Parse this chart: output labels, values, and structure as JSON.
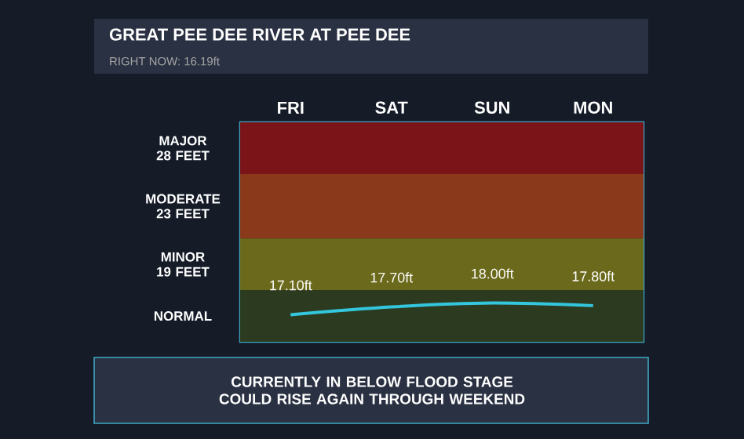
{
  "chart_data": {
    "type": "line",
    "title": "GREAT PEE DEE RIVER AT PEE DEE",
    "subtitle": "RIGHT NOW: 16.19ft",
    "categories": [
      "FRI",
      "SAT",
      "SUN",
      "MON"
    ],
    "values": [
      17.1,
      17.7,
      18.0,
      17.8
    ],
    "value_labels": [
      "17.10ft",
      "17.70ft",
      "18.00ft",
      "17.80ft"
    ],
    "color": "#33c6dc",
    "marker": "none",
    "line_style": "solid",
    "ylim": [
      15,
      32
    ],
    "tick_labels": "x",
    "bands": [
      {
        "axis": "y",
        "from": 28,
        "to": 32,
        "label": "MAJOR 28 FEET",
        "color": "#7a1419"
      },
      {
        "axis": "y",
        "from": 23,
        "to": 28,
        "label": "MODERATE 23 FEET",
        "color": "#8a3a1a"
      },
      {
        "axis": "y",
        "from": 19,
        "to": 23,
        "label": "MINOR 19 FEET",
        "color": "#6b6a1c"
      },
      {
        "axis": "y",
        "from": 15,
        "to": 19,
        "label": "NORMAL",
        "color": "#2c3b20"
      }
    ],
    "annotations": [
      "CURRENTLY IN BELOW FLOOD STAGE COULD RISE AGAIN THROUGH WEEKEND"
    ]
  }
}
